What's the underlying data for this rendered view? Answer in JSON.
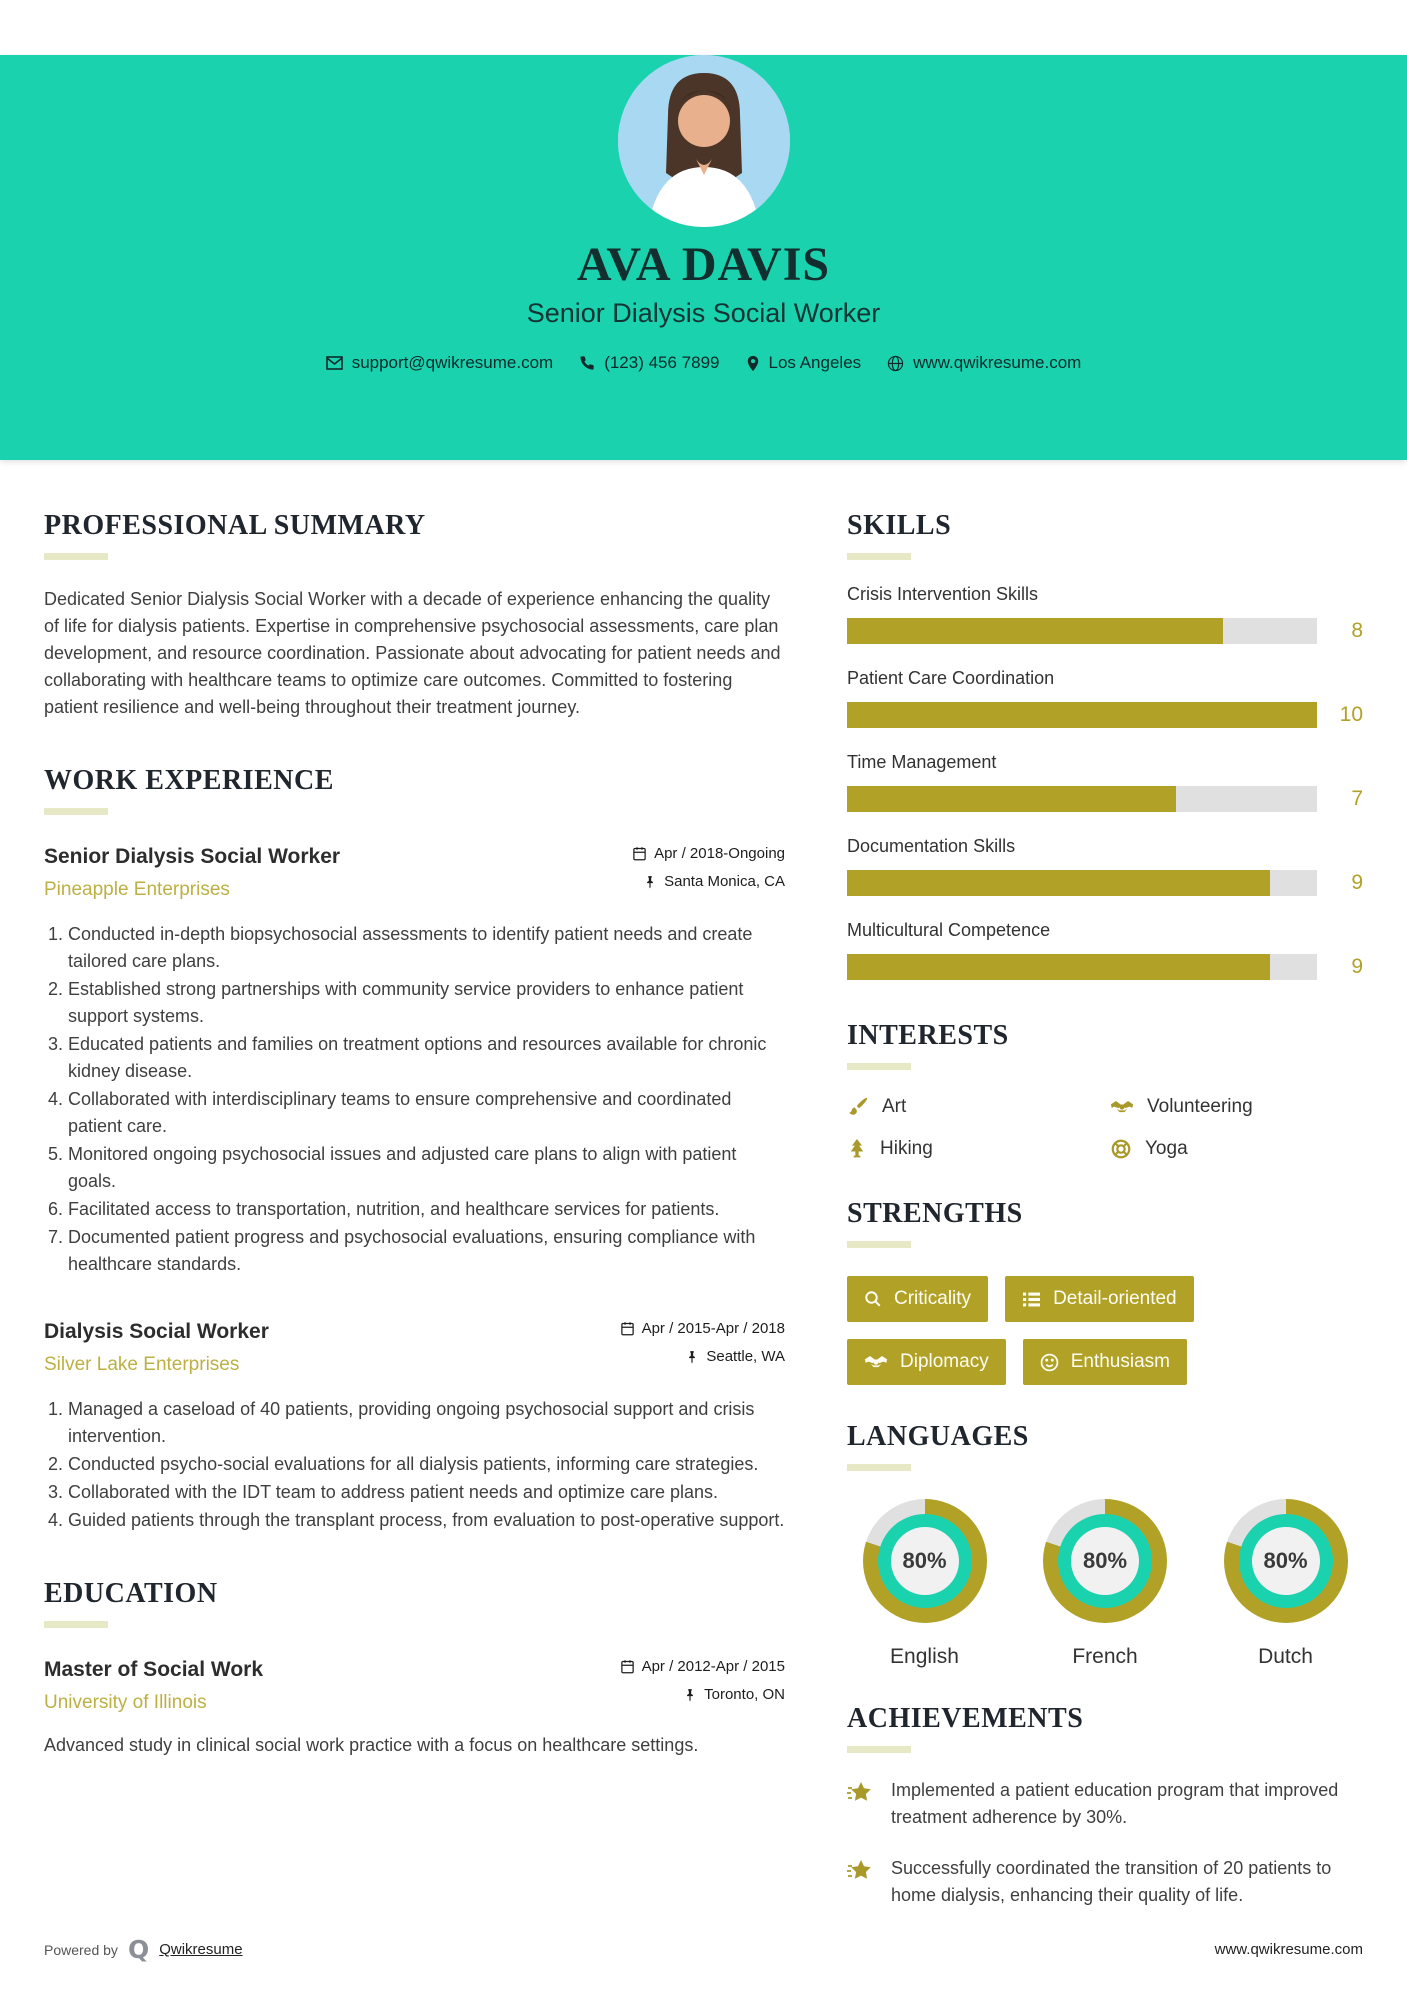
{
  "header": {
    "name": "AVA DAVIS",
    "title": "Senior Dialysis Social Worker",
    "contacts": {
      "email": "support@qwikresume.com",
      "phone": "(123) 456 7899",
      "location": "Los Angeles",
      "website": "www.qwikresume.com"
    }
  },
  "sections": {
    "summary": "PROFESSIONAL SUMMARY",
    "work": "WORK EXPERIENCE",
    "education": "EDUCATION",
    "skills": "SKILLS",
    "interests": "INTERESTS",
    "strengths": "STRENGTHS",
    "languages": "LANGUAGES",
    "achievements": "ACHIEVEMENTS"
  },
  "summary": {
    "text": "Dedicated Senior Dialysis Social Worker with a decade of experience enhancing the quality of life for dialysis patients. Expertise in comprehensive psychosocial assessments, care plan development, and resource coordination. Passionate about advocating for patient needs and collaborating with healthcare teams to optimize care outcomes. Committed to fostering patient resilience and well-being throughout their treatment journey."
  },
  "work": {
    "jobs": [
      {
        "title": "Senior Dialysis Social Worker",
        "company": "Pineapple Enterprises",
        "date": "Apr / 2018-Ongoing",
        "location": "Santa Monica, CA",
        "bullets": [
          "Conducted in-depth biopsychosocial assessments to identify patient needs and create tailored care plans.",
          "Established strong partnerships with community service providers to enhance patient support systems.",
          "Educated patients and families on treatment options and resources available for chronic kidney disease.",
          "Collaborated with interdisciplinary teams to ensure comprehensive and coordinated patient care.",
          "Monitored ongoing psychosocial issues and adjusted care plans to align with patient goals.",
          "Facilitated access to transportation, nutrition, and healthcare services for patients.",
          "Documented patient progress and psychosocial evaluations, ensuring compliance with healthcare standards."
        ]
      },
      {
        "title": "Dialysis Social Worker",
        "company": "Silver Lake Enterprises",
        "date": "Apr / 2015-Apr / 2018",
        "location": "Seattle, WA",
        "bullets": [
          "Managed a caseload of 40 patients, providing ongoing psychosocial support and crisis intervention.",
          "Conducted psycho-social evaluations for all dialysis patients, informing care strategies.",
          "Collaborated with the IDT team to address patient needs and optimize care plans.",
          "Guided patients through the transplant process, from evaluation to post-operative support."
        ]
      }
    ]
  },
  "education": {
    "degree": "Master of Social Work",
    "school": "University of Illinois",
    "date": "Apr / 2012-Apr / 2015",
    "location": "Toronto, ON",
    "description": "Advanced study in clinical social work practice with a focus on healthcare settings."
  },
  "skills": {
    "items": [
      {
        "label": "Crisis Intervention Skills",
        "value": "8",
        "percent": 80
      },
      {
        "label": "Patient Care Coordination",
        "value": "10",
        "percent": 100
      },
      {
        "label": "Time Management",
        "value": "7",
        "percent": 70
      },
      {
        "label": "Documentation Skills",
        "value": "9",
        "percent": 90
      },
      {
        "label": "Multicultural Competence",
        "value": "9",
        "percent": 90
      }
    ]
  },
  "interests": {
    "items": [
      {
        "label": "Art",
        "icon": "paintbrush-icon"
      },
      {
        "label": "Volunteering",
        "icon": "handshake-icon"
      },
      {
        "label": "Hiking",
        "icon": "tree-icon"
      },
      {
        "label": "Yoga",
        "icon": "lifebuoy-icon"
      }
    ]
  },
  "strengths": {
    "items": [
      {
        "label": "Criticality",
        "icon": "magnifier-icon"
      },
      {
        "label": "Detail-oriented",
        "icon": "list-icon"
      },
      {
        "label": "Diplomacy",
        "icon": "handshake-icon"
      },
      {
        "label": "Enthusiasm",
        "icon": "smiley-icon"
      }
    ]
  },
  "languages": {
    "items": [
      {
        "label": "English",
        "percent_label": "80%",
        "percent": 80
      },
      {
        "label": "French",
        "percent_label": "80%",
        "percent": 80
      },
      {
        "label": "Dutch",
        "percent_label": "80%",
        "percent": 80
      }
    ]
  },
  "achievements": {
    "items": [
      "Implemented a patient education program that improved treatment adherence by 30%.",
      "Successfully coordinated the transition of 20 patients to home dialysis, enhancing their quality of life."
    ]
  },
  "footer": {
    "powered_by": "Powered by",
    "brand": "Qwikresume",
    "website": "www.qwikresume.com"
  },
  "colors": {
    "teal": "#1ad2ae",
    "olive": "#b1a127",
    "track": "#e0e0e0",
    "underline": "#e6e8c6"
  }
}
